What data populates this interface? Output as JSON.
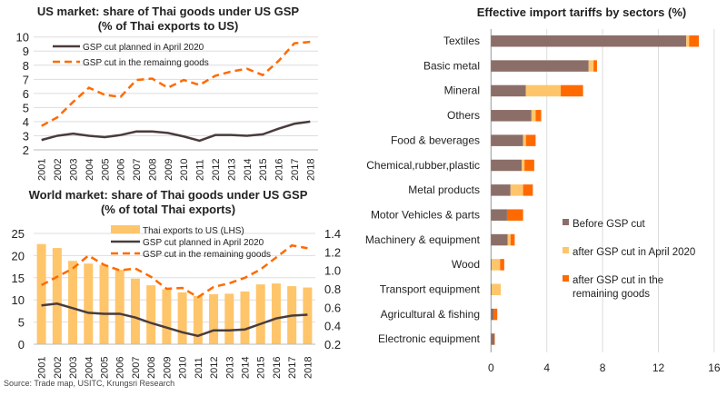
{
  "chart_data": [
    {
      "type": "line",
      "title": "US market: share of Thai goods under US GSP",
      "subtitle": "(% of Thai exports to US)",
      "ylim": [
        2,
        10
      ],
      "yticks": [
        2,
        3,
        4,
        5,
        6,
        7,
        8,
        9,
        10
      ],
      "categories": [
        "2001",
        "2002",
        "2003",
        "2004",
        "2005",
        "2006",
        "2007",
        "2008",
        "2009",
        "2010",
        "2011",
        "2012",
        "2013",
        "2014",
        "2015",
        "2016",
        "2017",
        "2018"
      ],
      "series": [
        {
          "name": "GSP cut planned in April 2020",
          "color": "#4a3c3c",
          "style": "solid",
          "values": [
            2.7,
            3.0,
            3.15,
            3.0,
            2.9,
            3.05,
            3.3,
            3.3,
            3.2,
            2.95,
            2.65,
            3.05,
            3.05,
            3.0,
            3.1,
            3.5,
            3.85,
            4.0
          ]
        },
        {
          "name": "GSP cut in the remainng goods",
          "color": "#ff6a00",
          "style": "dashed",
          "values": [
            3.7,
            4.3,
            5.4,
            6.4,
            5.9,
            5.75,
            6.95,
            7.05,
            6.4,
            6.95,
            6.6,
            7.25,
            7.55,
            7.75,
            7.3,
            8.3,
            9.55,
            9.65
          ]
        }
      ],
      "grid": true,
      "legend": "top-left"
    },
    {
      "type": "bar+line",
      "title": "World market: share of Thai goods under US GSP",
      "subtitle": "(% of total Thai exports)",
      "ylim": [
        0,
        25
      ],
      "yticks": [
        0,
        5,
        10,
        15,
        20,
        25
      ],
      "y2lim": [
        0.2,
        1.4
      ],
      "y2ticks": [
        "0.2",
        "0.4",
        "0.6",
        "0.8",
        "1.0",
        "1.2",
        "1.4"
      ],
      "categories": [
        "2001",
        "2002",
        "2003",
        "2004",
        "2005",
        "2006",
        "2007",
        "2008",
        "2009",
        "2010",
        "2011",
        "2012",
        "2013",
        "2014",
        "2015",
        "2016",
        "2017",
        "2018"
      ],
      "series": [
        {
          "name": "Thai exports to US (LHS)",
          "type": "bar",
          "axis": "left",
          "color": "#ffc56b",
          "values": [
            22.6,
            21.7,
            18.8,
            18.2,
            17.9,
            16.8,
            14.8,
            13.3,
            12.4,
            11.7,
            10.9,
            11.3,
            11.4,
            11.9,
            13.5,
            13.7,
            13.1,
            12.8
          ]
        },
        {
          "name": "GSP cut planned in April 2020",
          "type": "line",
          "axis": "right",
          "color": "#4a3c3c",
          "style": "solid",
          "values": [
            0.62,
            0.64,
            0.59,
            0.54,
            0.53,
            0.53,
            0.49,
            0.43,
            0.38,
            0.33,
            0.29,
            0.35,
            0.35,
            0.36,
            0.42,
            0.48,
            0.51,
            0.52
          ]
        },
        {
          "name": "GSP cut in the remaining goods",
          "type": "line",
          "axis": "right",
          "color": "#ff6a00",
          "style": "dashed",
          "values": [
            0.84,
            0.93,
            1.02,
            1.16,
            1.06,
            1.0,
            1.02,
            0.93,
            0.8,
            0.81,
            0.71,
            0.82,
            0.86,
            0.92,
            1.01,
            1.14,
            1.27,
            1.24
          ]
        }
      ],
      "grid": true,
      "legend": "top-center"
    },
    {
      "type": "bar",
      "orientation": "horizontal",
      "stacked": true,
      "title": "Effective import tariffs by sectors (%)",
      "xlim": [
        0,
        16
      ],
      "xticks": [
        0,
        4,
        8,
        12,
        16
      ],
      "categories": [
        "Textiles",
        "Basic metal",
        "Mineral",
        "Others",
        "Food & beverages",
        "Chemical,rubber,plastic",
        "Metal products",
        "Motor Vehicles & parts",
        "Machinery & equipment",
        "Wood",
        "Transport equipment",
        "Agricultural & fishing",
        "Electronic equipment"
      ],
      "series": [
        {
          "name": "Before GSP cut",
          "color": "#8c6e68",
          "values": [
            14.0,
            7.0,
            2.5,
            2.9,
            2.3,
            2.2,
            1.4,
            1.15,
            1.2,
            0.05,
            0.05,
            0.2,
            0.25
          ]
        },
        {
          "name": "after GSP cut in April 2020",
          "color": "#ffc56b",
          "values": [
            0.2,
            0.35,
            2.5,
            0.3,
            0.2,
            0.2,
            0.9,
            0,
            0.2,
            0.6,
            0.65,
            0,
            0
          ]
        },
        {
          "name": "after GSP cut in the remaining goods",
          "color": "#ff6a00",
          "values": [
            0.7,
            0.25,
            1.6,
            0.4,
            0.7,
            0.7,
            0.7,
            1.15,
            0.3,
            0.3,
            0,
            0.25,
            0.03
          ]
        }
      ],
      "legend": "right"
    }
  ],
  "source": "Source: Trade map, USITC, Krungsri Research"
}
